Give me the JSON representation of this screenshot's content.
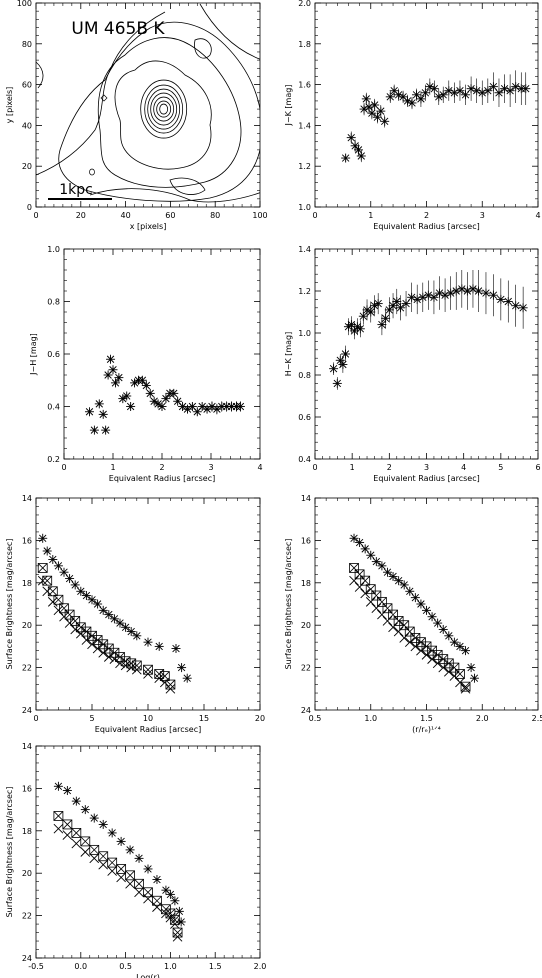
{
  "figure": {
    "colors": {
      "ink": "#000000",
      "background": "#ffffff"
    }
  },
  "chart_data": [
    {
      "id": "contour",
      "type": "contour",
      "title": "UM 465B K",
      "xlabel": "x [pixels]",
      "ylabel": "y [pixels]",
      "xlim": [
        0,
        100
      ],
      "ylim": [
        0,
        100
      ],
      "xticks": [
        0,
        20,
        40,
        60,
        80,
        100
      ],
      "yticks": [
        0,
        20,
        40,
        60,
        80,
        100
      ],
      "scale_bar_label": "1kpc",
      "peak": {
        "x": 57,
        "y": 48
      }
    },
    {
      "id": "jk",
      "type": "scatter",
      "xlabel": "Equivalent Radius [arcsec]",
      "ylabel": "J−K [mag]",
      "xlim": [
        0,
        4
      ],
      "ylim": [
        1.0,
        2.0
      ],
      "xticks": [
        0,
        1,
        2,
        3,
        4
      ],
      "yticks": [
        1.0,
        1.2,
        1.4,
        1.6,
        1.8,
        2.0
      ],
      "ytick_labels": [
        "1.0",
        "1.2",
        "1.4",
        "1.6",
        "1.8",
        "2.0"
      ],
      "marker": "asterisk",
      "x": [
        0.55,
        0.65,
        0.72,
        0.78,
        0.83,
        0.88,
        0.92,
        0.97,
        1.02,
        1.07,
        1.12,
        1.18,
        1.25,
        1.35,
        1.42,
        1.5,
        1.58,
        1.66,
        1.74,
        1.82,
        1.9,
        1.98,
        2.06,
        2.14,
        2.22,
        2.3,
        2.4,
        2.5,
        2.6,
        2.7,
        2.8,
        2.9,
        3.0,
        3.1,
        3.2,
        3.3,
        3.4,
        3.5,
        3.6,
        3.7,
        3.78
      ],
      "y": [
        1.24,
        1.34,
        1.3,
        1.28,
        1.25,
        1.48,
        1.53,
        1.49,
        1.46,
        1.5,
        1.44,
        1.47,
        1.42,
        1.54,
        1.57,
        1.55,
        1.54,
        1.52,
        1.51,
        1.55,
        1.53,
        1.56,
        1.59,
        1.58,
        1.54,
        1.55,
        1.57,
        1.56,
        1.57,
        1.55,
        1.58,
        1.57,
        1.56,
        1.57,
        1.59,
        1.56,
        1.58,
        1.57,
        1.59,
        1.58,
        1.58
      ],
      "err": [
        0.02,
        0.03,
        0.03,
        0.03,
        0.03,
        0.03,
        0.03,
        0.03,
        0.03,
        0.03,
        0.03,
        0.03,
        0.03,
        0.03,
        0.03,
        0.03,
        0.03,
        0.03,
        0.03,
        0.03,
        0.04,
        0.04,
        0.04,
        0.04,
        0.04,
        0.04,
        0.05,
        0.05,
        0.05,
        0.05,
        0.06,
        0.06,
        0.06,
        0.06,
        0.07,
        0.07,
        0.07,
        0.08,
        0.08,
        0.08,
        0.08
      ]
    },
    {
      "id": "jh",
      "type": "scatter",
      "xlabel": "Equivalent Radius [arcsec]",
      "ylabel": "J−H [mag]",
      "xlim": [
        0,
        4
      ],
      "ylim": [
        0.2,
        1.0
      ],
      "xticks": [
        0,
        1,
        2,
        3,
        4
      ],
      "yticks": [
        0.2,
        0.4,
        0.6,
        0.8,
        1.0
      ],
      "ytick_labels": [
        "0.2",
        "0.4",
        "0.6",
        "0.8",
        "1.0"
      ],
      "marker": "asterisk",
      "x": [
        0.52,
        0.62,
        0.72,
        0.8,
        0.85,
        0.9,
        0.95,
        1.0,
        1.05,
        1.12,
        1.2,
        1.28,
        1.36,
        1.44,
        1.52,
        1.6,
        1.68,
        1.76,
        1.84,
        1.92,
        2.0,
        2.08,
        2.16,
        2.24,
        2.32,
        2.42,
        2.52,
        2.62,
        2.72,
        2.82,
        2.92,
        3.02,
        3.12,
        3.22,
        3.32,
        3.42,
        3.52,
        3.6
      ],
      "y": [
        0.38,
        0.31,
        0.41,
        0.37,
        0.31,
        0.52,
        0.58,
        0.54,
        0.49,
        0.51,
        0.43,
        0.44,
        0.4,
        0.49,
        0.5,
        0.5,
        0.48,
        0.45,
        0.42,
        0.41,
        0.4,
        0.43,
        0.45,
        0.45,
        0.42,
        0.4,
        0.39,
        0.4,
        0.38,
        0.4,
        0.39,
        0.4,
        0.39,
        0.4,
        0.4,
        0.4,
        0.4,
        0.4
      ],
      "err": [
        0.01,
        0.01,
        0.01,
        0.01,
        0.01,
        0.01,
        0.01,
        0.01,
        0.01,
        0.01,
        0.01,
        0.01,
        0.01,
        0.01,
        0.01,
        0.01,
        0.01,
        0.01,
        0.01,
        0.01,
        0.01,
        0.01,
        0.01,
        0.015,
        0.015,
        0.015,
        0.015,
        0.015,
        0.015,
        0.015,
        0.015,
        0.02,
        0.02,
        0.02,
        0.02,
        0.02,
        0.02,
        0.02
      ]
    },
    {
      "id": "hk",
      "type": "scatter",
      "xlabel": "Equivalent Radius [arcsec]",
      "ylabel": "H−K [mag]",
      "xlim": [
        0,
        6
      ],
      "ylim": [
        0.4,
        1.4
      ],
      "xticks": [
        0,
        1,
        2,
        3,
        4,
        5,
        6
      ],
      "yticks": [
        0.4,
        0.6,
        0.8,
        1.0,
        1.2,
        1.4
      ],
      "ytick_labels": [
        "0.4",
        "0.6",
        "0.8",
        "1.0",
        "1.2",
        "1.4"
      ],
      "marker": "asterisk",
      "x": [
        0.5,
        0.6,
        0.68,
        0.75,
        0.82,
        0.9,
        0.98,
        1.06,
        1.14,
        1.22,
        1.3,
        1.4,
        1.5,
        1.6,
        1.7,
        1.8,
        1.9,
        2.0,
        2.1,
        2.2,
        2.3,
        2.45,
        2.6,
        2.75,
        2.9,
        3.05,
        3.2,
        3.35,
        3.5,
        3.65,
        3.8,
        3.95,
        4.1,
        4.25,
        4.4,
        4.6,
        4.8,
        5.0,
        5.2,
        5.4,
        5.6
      ],
      "y": [
        0.83,
        0.76,
        0.87,
        0.85,
        0.9,
        1.03,
        1.04,
        1.01,
        1.03,
        1.02,
        1.08,
        1.11,
        1.1,
        1.13,
        1.14,
        1.04,
        1.07,
        1.11,
        1.13,
        1.15,
        1.12,
        1.14,
        1.17,
        1.16,
        1.17,
        1.18,
        1.17,
        1.19,
        1.18,
        1.19,
        1.2,
        1.21,
        1.2,
        1.21,
        1.2,
        1.19,
        1.18,
        1.16,
        1.15,
        1.13,
        1.12
      ],
      "err": [
        0.03,
        0.03,
        0.03,
        0.04,
        0.04,
        0.04,
        0.04,
        0.04,
        0.04,
        0.04,
        0.04,
        0.05,
        0.05,
        0.05,
        0.05,
        0.05,
        0.05,
        0.06,
        0.06,
        0.06,
        0.06,
        0.06,
        0.07,
        0.07,
        0.07,
        0.07,
        0.08,
        0.08,
        0.08,
        0.08,
        0.09,
        0.09,
        0.09,
        0.09,
        0.1,
        0.1,
        0.1,
        0.1,
        0.1,
        0.1,
        0.1
      ]
    },
    {
      "id": "sb_radius",
      "type": "scatter",
      "xlabel": "Equivalent Radius [arcsec]",
      "ylabel": "Surface Brightness [mag/arcsec]",
      "xlim": [
        0,
        20
      ],
      "ylim": [
        24,
        14
      ],
      "xticks": [
        0,
        5,
        10,
        15,
        20
      ],
      "yticks": [
        14,
        16,
        18,
        20,
        22,
        24
      ],
      "ytick_labels": [
        "14",
        "16",
        "18",
        "20",
        "22",
        "24"
      ],
      "series": [
        {
          "marker": "asterisk-x",
          "x": [
            0.6,
            1.0,
            1.5,
            2.0,
            2.5,
            3.0,
            3.5,
            4.0,
            4.5,
            5.0,
            5.5,
            6.0,
            6.5,
            7.0,
            7.5,
            8.0,
            8.5,
            9.0,
            10.0,
            11.0,
            12.5,
            13.0,
            13.5
          ],
          "y": [
            15.9,
            16.5,
            16.9,
            17.2,
            17.5,
            17.8,
            18.1,
            18.4,
            18.6,
            18.8,
            19.0,
            19.3,
            19.5,
            19.7,
            19.9,
            20.1,
            20.3,
            20.5,
            20.8,
            21.0,
            21.1,
            22.0,
            22.5
          ]
        },
        {
          "marker": "box-x",
          "x": [
            0.6,
            1.0,
            1.5,
            2.0,
            2.5,
            3.0,
            3.5,
            4.0,
            4.5,
            5.0,
            5.5,
            6.0,
            6.5,
            7.0,
            7.5,
            8.0,
            8.5,
            9.0,
            10.0,
            11.0,
            11.5,
            12.0
          ],
          "y": [
            17.3,
            17.9,
            18.4,
            18.8,
            19.2,
            19.5,
            19.8,
            20.1,
            20.3,
            20.5,
            20.7,
            20.9,
            21.1,
            21.3,
            21.5,
            21.7,
            21.8,
            21.9,
            22.1,
            22.3,
            22.4,
            22.8
          ]
        },
        {
          "marker": "x",
          "x": [
            0.6,
            1.0,
            1.5,
            2.0,
            2.5,
            3.0,
            3.5,
            4.0,
            4.5,
            5.0,
            5.5,
            6.0,
            6.5,
            7.0,
            7.5,
            8.0,
            8.5,
            9.0,
            10.0,
            11.0,
            11.5,
            12.0
          ],
          "y": [
            17.9,
            18.4,
            18.9,
            19.3,
            19.6,
            19.9,
            20.2,
            20.4,
            20.7,
            20.9,
            21.1,
            21.3,
            21.5,
            21.6,
            21.8,
            21.9,
            22.0,
            22.1,
            22.3,
            22.5,
            22.7,
            23.0
          ]
        }
      ]
    },
    {
      "id": "sb_quarter",
      "type": "scatter",
      "xlabel": "(r/rₑ)¹ᐟ⁴",
      "ylabel": "Surface Brightness [mag/arcsec]",
      "xlim": [
        0.5,
        2.5
      ],
      "ylim": [
        24,
        14
      ],
      "xticks": [
        0.5,
        1.0,
        1.5,
        2.0,
        2.5
      ],
      "xtick_labels": [
        "0.5",
        "1.0",
        "1.5",
        "2.0",
        "2.5"
      ],
      "yticks": [
        14,
        16,
        18,
        20,
        22,
        24
      ],
      "ytick_labels": [
        "14",
        "16",
        "18",
        "20",
        "22",
        "24"
      ],
      "series": [
        {
          "marker": "asterisk-x",
          "x": [
            0.85,
            0.9,
            0.95,
            1.0,
            1.05,
            1.1,
            1.15,
            1.2,
            1.25,
            1.3,
            1.35,
            1.4,
            1.45,
            1.5,
            1.55,
            1.6,
            1.65,
            1.7,
            1.75,
            1.8,
            1.85,
            1.9,
            1.93
          ],
          "y": [
            15.9,
            16.1,
            16.4,
            16.7,
            17.0,
            17.2,
            17.5,
            17.7,
            17.9,
            18.1,
            18.4,
            18.7,
            19.0,
            19.3,
            19.6,
            19.9,
            20.2,
            20.5,
            20.8,
            21.0,
            21.2,
            22.0,
            22.5
          ]
        },
        {
          "marker": "box-x",
          "x": [
            0.85,
            0.9,
            0.95,
            1.0,
            1.05,
            1.1,
            1.15,
            1.2,
            1.25,
            1.3,
            1.35,
            1.4,
            1.45,
            1.5,
            1.55,
            1.6,
            1.65,
            1.7,
            1.75,
            1.8,
            1.85
          ],
          "y": [
            17.3,
            17.6,
            17.9,
            18.3,
            18.6,
            18.9,
            19.2,
            19.5,
            19.8,
            20.0,
            20.3,
            20.6,
            20.8,
            21.0,
            21.2,
            21.4,
            21.6,
            21.8,
            22.0,
            22.3,
            22.9
          ]
        },
        {
          "marker": "x",
          "x": [
            0.85,
            0.9,
            0.95,
            1.0,
            1.05,
            1.1,
            1.15,
            1.2,
            1.25,
            1.3,
            1.35,
            1.4,
            1.45,
            1.5,
            1.55,
            1.6,
            1.65,
            1.7,
            1.75,
            1.8,
            1.85
          ],
          "y": [
            17.9,
            18.2,
            18.5,
            18.9,
            19.2,
            19.5,
            19.8,
            20.1,
            20.3,
            20.6,
            20.8,
            21.0,
            21.2,
            21.4,
            21.6,
            21.8,
            22.0,
            22.2,
            22.4,
            22.7,
            23.0
          ]
        }
      ]
    },
    {
      "id": "sb_log",
      "type": "scatter",
      "xlabel": "Log(r)",
      "ylabel": "Surface Brightness [mag/arcsec]",
      "xlim": [
        -0.5,
        2.0
      ],
      "ylim": [
        24,
        14
      ],
      "xticks": [
        -0.5,
        0.0,
        0.5,
        1.0,
        1.5,
        2.0
      ],
      "xtick_labels": [
        "-0.5",
        "0.0",
        "0.5",
        "1.0",
        "1.5",
        "2.0"
      ],
      "yticks": [
        14,
        16,
        18,
        20,
        22,
        24
      ],
      "ytick_labels": [
        "14",
        "16",
        "18",
        "20",
        "22",
        "24"
      ],
      "series": [
        {
          "marker": "asterisk-x",
          "x": [
            -0.25,
            -0.15,
            -0.05,
            0.05,
            0.15,
            0.25,
            0.35,
            0.45,
            0.55,
            0.65,
            0.75,
            0.85,
            0.95,
            1.0,
            1.05,
            1.1,
            1.12
          ],
          "y": [
            15.9,
            16.1,
            16.6,
            17.0,
            17.4,
            17.7,
            18.1,
            18.5,
            18.9,
            19.3,
            19.8,
            20.3,
            20.8,
            21.0,
            21.3,
            21.8,
            22.3
          ]
        },
        {
          "marker": "box-x",
          "x": [
            -0.25,
            -0.15,
            -0.05,
            0.05,
            0.15,
            0.25,
            0.35,
            0.45,
            0.55,
            0.65,
            0.75,
            0.85,
            0.95,
            1.0,
            1.05,
            1.08
          ],
          "y": [
            17.3,
            17.7,
            18.1,
            18.5,
            18.9,
            19.2,
            19.5,
            19.8,
            20.1,
            20.5,
            20.9,
            21.3,
            21.7,
            21.9,
            22.2,
            22.8
          ]
        },
        {
          "marker": "x",
          "x": [
            -0.25,
            -0.15,
            -0.05,
            0.05,
            0.15,
            0.25,
            0.35,
            0.45,
            0.55,
            0.65,
            0.75,
            0.85,
            0.95,
            1.0,
            1.05,
            1.08
          ],
          "y": [
            17.9,
            18.2,
            18.6,
            19.0,
            19.3,
            19.6,
            19.9,
            20.2,
            20.5,
            20.9,
            21.2,
            21.6,
            21.9,
            22.1,
            22.4,
            23.0
          ]
        }
      ]
    }
  ]
}
